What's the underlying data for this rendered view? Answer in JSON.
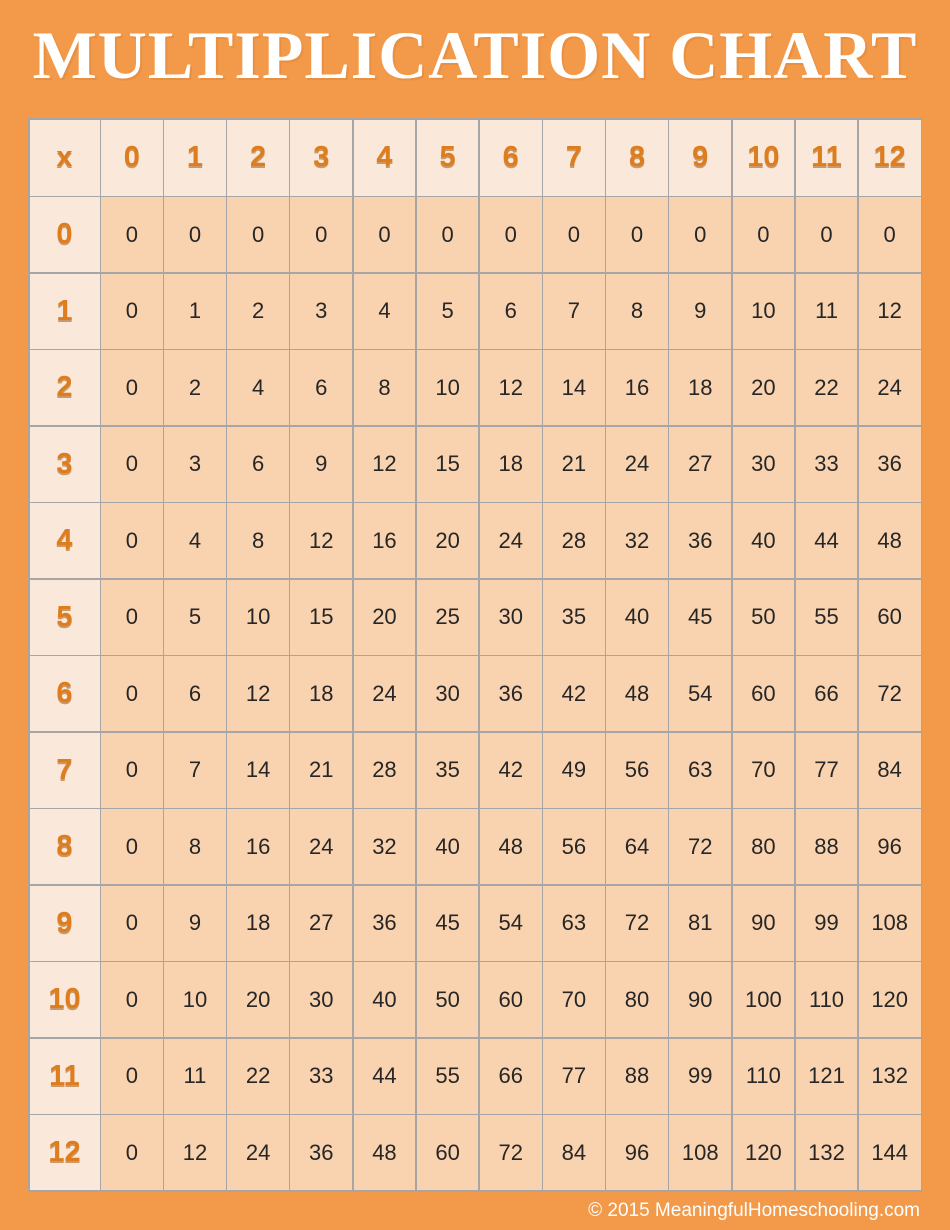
{
  "page": {
    "title": "MULTIPLICATION CHART",
    "footer": "© 2015 MeaningfulHomeschooling.com"
  },
  "colors": {
    "page_background": "#F2994A",
    "header_cell_background": "#FAE9DB",
    "value_cell_background": "#F9D3AF",
    "grid_line": "#A6A6A6",
    "header_number": "#DD7D1E",
    "value_text": "#262626",
    "title_text": "#FFFFFF",
    "footer_text": "#FFFFFF"
  },
  "chart_data": {
    "type": "table",
    "title": "MULTIPLICATION CHART",
    "corner_label": "x",
    "column_headers": [
      "0",
      "1",
      "2",
      "3",
      "4",
      "5",
      "6",
      "7",
      "8",
      "9",
      "10",
      "11",
      "12"
    ],
    "row_headers": [
      "0",
      "1",
      "2",
      "3",
      "4",
      "5",
      "6",
      "7",
      "8",
      "9",
      "10",
      "11",
      "12"
    ],
    "rows": [
      [
        0,
        0,
        0,
        0,
        0,
        0,
        0,
        0,
        0,
        0,
        0,
        0,
        0
      ],
      [
        0,
        1,
        2,
        3,
        4,
        5,
        6,
        7,
        8,
        9,
        10,
        11,
        12
      ],
      [
        0,
        2,
        4,
        6,
        8,
        10,
        12,
        14,
        16,
        18,
        20,
        22,
        24
      ],
      [
        0,
        3,
        6,
        9,
        12,
        15,
        18,
        21,
        24,
        27,
        30,
        33,
        36
      ],
      [
        0,
        4,
        8,
        12,
        16,
        20,
        24,
        28,
        32,
        36,
        40,
        44,
        48
      ],
      [
        0,
        5,
        10,
        15,
        20,
        25,
        30,
        35,
        40,
        45,
        50,
        55,
        60
      ],
      [
        0,
        6,
        12,
        18,
        24,
        30,
        36,
        42,
        48,
        54,
        60,
        66,
        72
      ],
      [
        0,
        7,
        14,
        21,
        28,
        35,
        42,
        49,
        56,
        63,
        70,
        77,
        84
      ],
      [
        0,
        8,
        16,
        24,
        32,
        40,
        48,
        56,
        64,
        72,
        80,
        88,
        96
      ],
      [
        0,
        9,
        18,
        27,
        36,
        45,
        54,
        63,
        72,
        81,
        90,
        99,
        108
      ],
      [
        0,
        10,
        20,
        30,
        40,
        50,
        60,
        70,
        80,
        90,
        100,
        110,
        120
      ],
      [
        0,
        11,
        22,
        33,
        44,
        55,
        66,
        77,
        88,
        99,
        110,
        121,
        132
      ],
      [
        0,
        12,
        24,
        36,
        48,
        60,
        72,
        84,
        96,
        108,
        120,
        132,
        144
      ]
    ]
  }
}
